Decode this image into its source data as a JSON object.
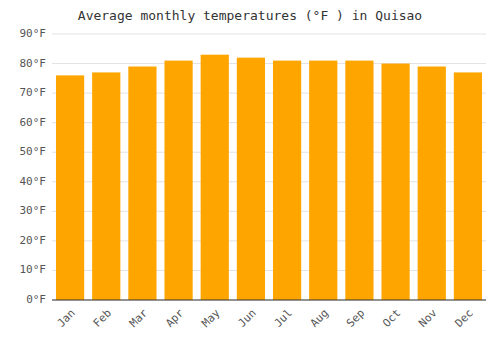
{
  "chart_data": {
    "type": "bar",
    "title": "Average monthly temperatures (°F ) in Quisao",
    "categories": [
      "Jan",
      "Feb",
      "Mar",
      "Apr",
      "May",
      "Jun",
      "Jul",
      "Aug",
      "Sep",
      "Oct",
      "Nov",
      "Dec"
    ],
    "values": [
      76,
      77,
      79,
      81,
      83,
      82,
      81,
      81,
      81,
      80,
      79,
      77
    ],
    "color": "#FFA500",
    "ylim": [
      0,
      90
    ],
    "yticks": [
      {
        "value": 0,
        "label": "0°F"
      },
      {
        "value": 10,
        "label": "10°F"
      },
      {
        "value": 20,
        "label": "20°F"
      },
      {
        "value": 30,
        "label": "30°F"
      },
      {
        "value": 40,
        "label": "40°F"
      },
      {
        "value": 50,
        "label": "50°F"
      },
      {
        "value": 60,
        "label": "60°F"
      },
      {
        "value": 70,
        "label": "70°F"
      },
      {
        "value": 80,
        "label": "80°F"
      },
      {
        "value": 90,
        "label": "90°F"
      }
    ],
    "grid": true
  }
}
